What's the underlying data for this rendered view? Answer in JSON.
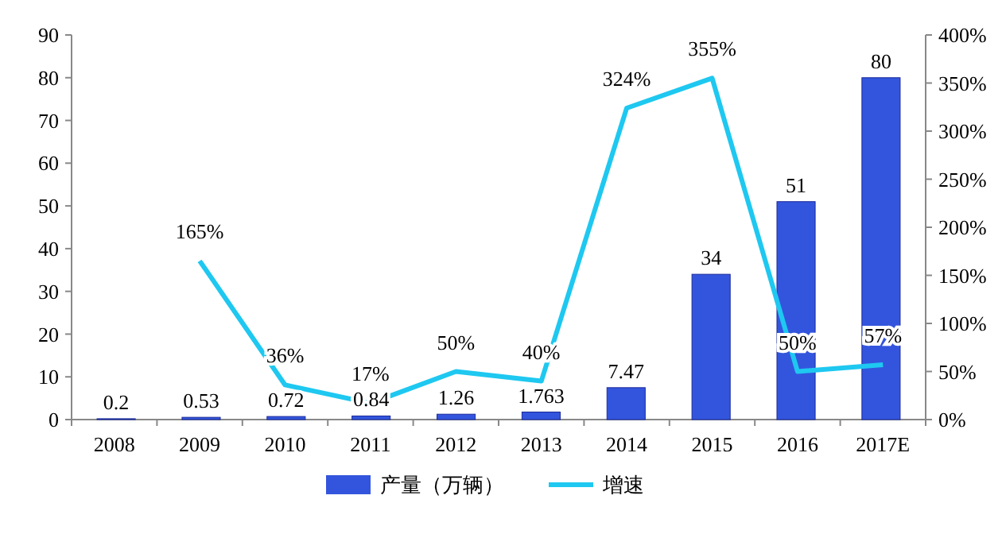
{
  "chart_data": {
    "type": "bar",
    "categories": [
      "2008",
      "2009",
      "2010",
      "2011",
      "2012",
      "2013",
      "2014",
      "2015",
      "2016",
      "2017E"
    ],
    "series": [
      {
        "name": "产量（万辆）",
        "color": "#3355dd",
        "values": [
          0.2,
          0.53,
          0.72,
          0.84,
          1.26,
          1.763,
          7.47,
          34,
          51,
          80
        ]
      },
      {
        "name": "增速",
        "type": "line",
        "axis": "y2",
        "color": "#1ec8f0",
        "values": [
          null,
          165,
          36,
          17,
          50,
          40,
          324,
          355,
          50,
          57
        ],
        "value_labels": [
          null,
          "165%",
          "36%",
          "17%",
          "50%",
          "40%",
          "324%",
          "355%",
          "50%",
          "57%"
        ]
      }
    ],
    "data_labels": true,
    "ylim": [
      0,
      90
    ],
    "yticks": [
      0,
      10,
      20,
      30,
      40,
      50,
      60,
      70,
      80,
      90
    ],
    "y2lim": [
      0,
      400
    ],
    "y2ticks": [
      {
        "value": 0,
        "label": "0%"
      },
      {
        "value": 50,
        "label": "50%"
      },
      {
        "value": 100,
        "label": "100%"
      },
      {
        "value": 150,
        "label": "150%"
      },
      {
        "value": 200,
        "label": "200%"
      },
      {
        "value": 250,
        "label": "250%"
      },
      {
        "value": 300,
        "label": "300%"
      },
      {
        "value": 350,
        "label": "350%"
      },
      {
        "value": 400,
        "label": "400%"
      }
    ],
    "legend": "bottom",
    "grid": false,
    "marker": "none",
    "line_style": "solid"
  }
}
